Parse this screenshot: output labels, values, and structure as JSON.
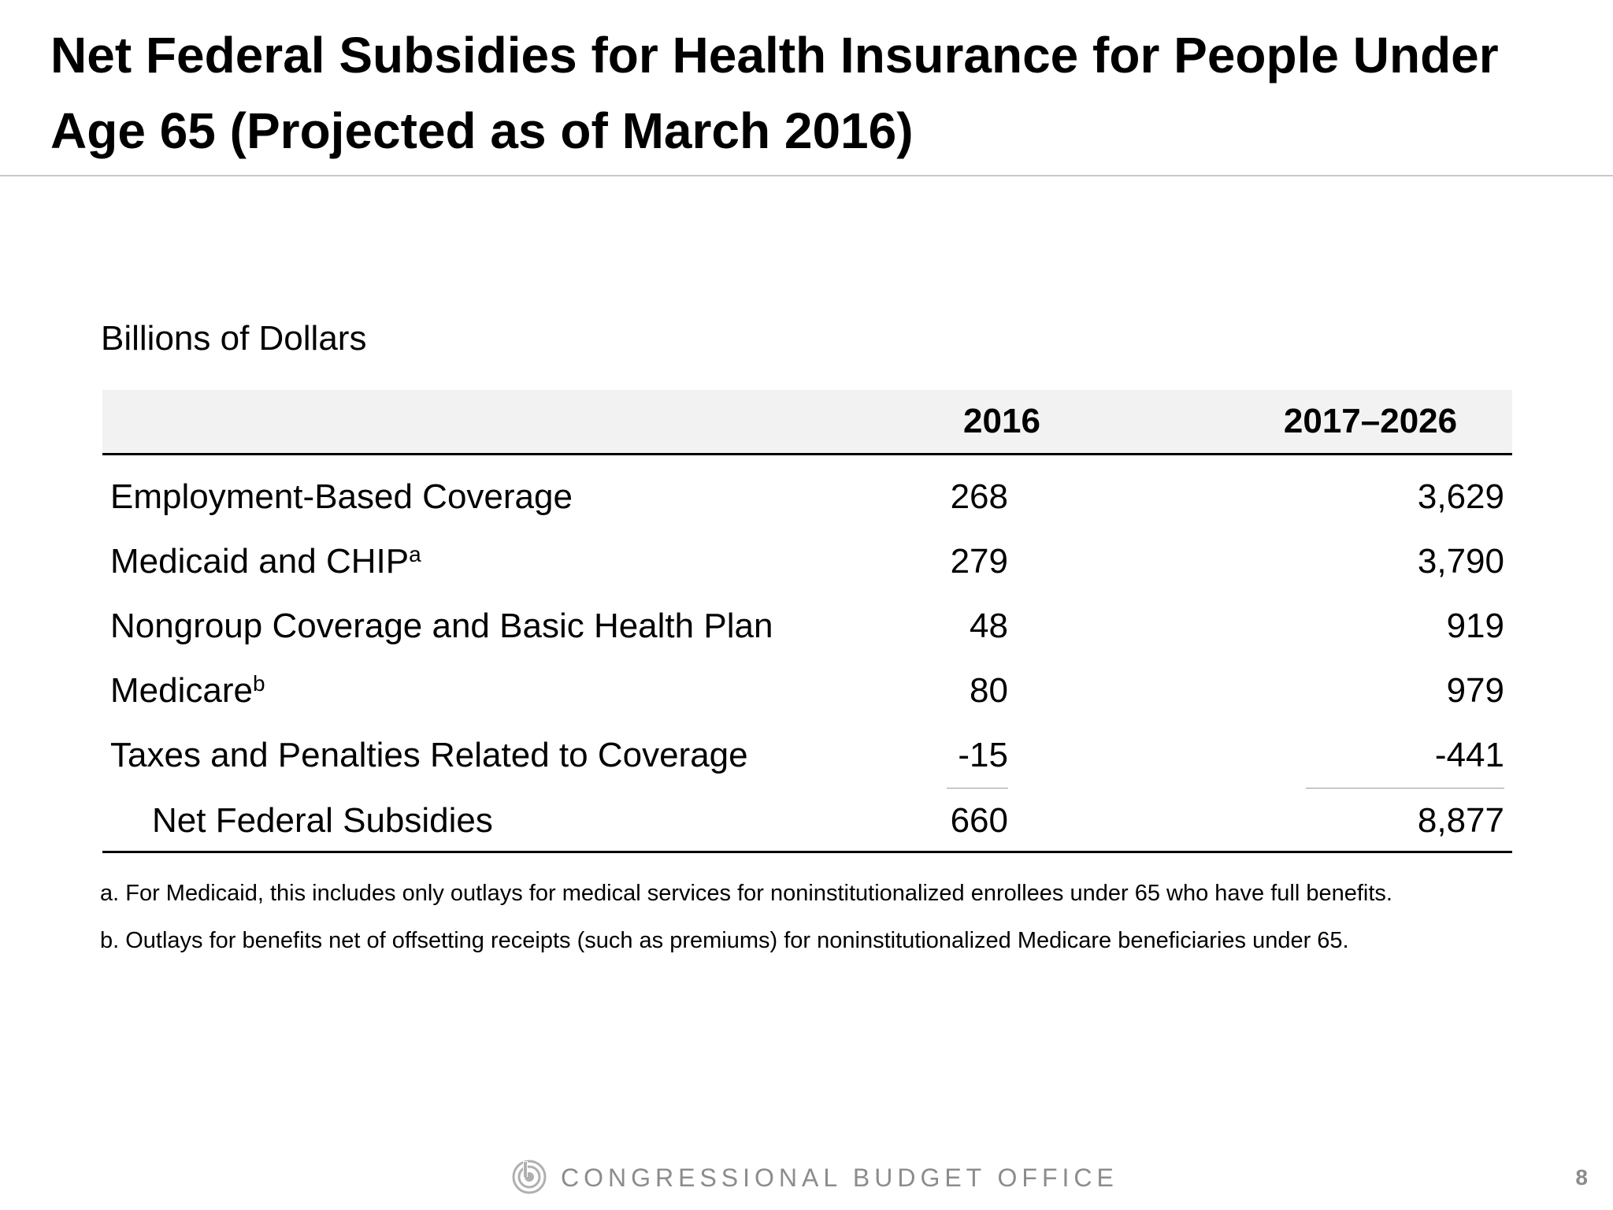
{
  "slide": {
    "title": "Net Federal Subsidies for Health Insurance for People Under Age 65 (Projected as of March 2016)",
    "units_label": "Billions of Dollars"
  },
  "table": {
    "columns": [
      "",
      "2016",
      "2017–2026"
    ],
    "rows": [
      {
        "label": "Employment-Based Coverage",
        "note": "",
        "values": [
          "268",
          "3,629"
        ]
      },
      {
        "label": "Medicaid and CHIP",
        "note": "a",
        "values": [
          "279",
          "3,790"
        ]
      },
      {
        "label": "Nongroup Coverage and Basic Health Plan",
        "note": "",
        "values": [
          "48",
          "919"
        ]
      },
      {
        "label": "Medicare",
        "note": "b",
        "values": [
          "80",
          "979"
        ]
      },
      {
        "label": "Taxes and Penalties Related to Coverage",
        "note": "",
        "values": [
          "-15",
          "-441"
        ]
      }
    ],
    "total": {
      "label": "Net Federal Subsidies",
      "values": [
        "660",
        "8,877"
      ]
    }
  },
  "footnotes": [
    "a. For Medicaid, this includes only outlays for medical services for noninstitutionalized enrollees under 65 who have full benefits.",
    "b. Outlays for benefits net of offsetting receipts (such as premiums) for noninstitutionalized Medicare beneficiaries under 65."
  ],
  "footer": {
    "organization": "CONGRESSIONAL BUDGET OFFICE",
    "logo_icon": "cbo-seal-icon",
    "page_number": "8"
  }
}
